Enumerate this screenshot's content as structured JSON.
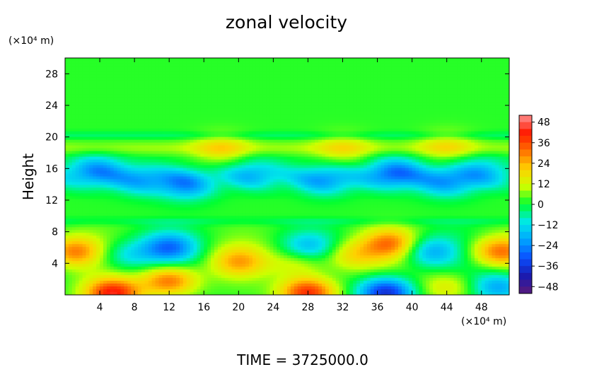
{
  "chart_data": {
    "type": "heatmap",
    "title": "zonal velocity",
    "ylabel": "Height",
    "xunit": "(×10⁴ m)",
    "yunit": "(×10⁴ m)",
    "footer": "TIME = 3725000.0",
    "x_ticks": [
      "4",
      "8",
      "12",
      "16",
      "20",
      "24",
      "28",
      "32",
      "36",
      "40",
      "44",
      "48"
    ],
    "y_ticks": [
      "4",
      "8",
      "12",
      "16",
      "20",
      "24",
      "28"
    ],
    "x_tick_values": [
      4,
      8,
      12,
      16,
      20,
      24,
      28,
      32,
      36,
      40,
      44,
      48
    ],
    "y_tick_values": [
      4,
      8,
      12,
      16,
      20,
      24,
      28
    ],
    "xlim": [
      0,
      51.2
    ],
    "ylim": [
      0,
      30
    ],
    "colorbar": {
      "labels": [
        "48",
        "36",
        "24",
        "12",
        "0",
        "−12",
        "−24",
        "−36",
        "−48"
      ],
      "values": [
        48,
        36,
        24,
        12,
        0,
        -12,
        -24,
        -36,
        -48
      ],
      "range": [
        -52,
        52
      ],
      "colors": [
        "#5a1a7a",
        "#1a1ab0",
        "#0a50ff",
        "#00a5ff",
        "#00e8e8",
        "#00ff30",
        "#ccff00",
        "#ffd000",
        "#ff7000",
        "#ff1a00",
        "#ff9090"
      ]
    },
    "background_value": 2,
    "features": [
      {
        "x": 3.5,
        "y": 15.8,
        "value": -22
      },
      {
        "x": 9,
        "y": 14.5,
        "value": -16
      },
      {
        "x": 14,
        "y": 13.8,
        "value": -20
      },
      {
        "x": 22,
        "y": 15.5,
        "value": -14
      },
      {
        "x": 30,
        "y": 14.5,
        "value": -18
      },
      {
        "x": 38,
        "y": 15.5,
        "value": -26
      },
      {
        "x": 44,
        "y": 14.2,
        "value": -18
      },
      {
        "x": 48,
        "y": 15.8,
        "value": -14
      },
      {
        "x": 18,
        "y": 18.5,
        "value": 14
      },
      {
        "x": 32,
        "y": 18.5,
        "value": 12
      },
      {
        "x": 44,
        "y": 18.8,
        "value": 12
      },
      {
        "x": 1,
        "y": 5.5,
        "value": 26
      },
      {
        "x": 12,
        "y": 6,
        "value": -26
      },
      {
        "x": 12,
        "y": 1.8,
        "value": 30
      },
      {
        "x": 5.5,
        "y": 0.2,
        "value": 40
      },
      {
        "x": 20,
        "y": 4.2,
        "value": 20
      },
      {
        "x": 28,
        "y": 0.3,
        "value": 38
      },
      {
        "x": 27,
        "y": 4.2,
        "value": 14
      },
      {
        "x": 28,
        "y": 6,
        "value": -18
      },
      {
        "x": 33,
        "y": 5,
        "value": 16
      },
      {
        "x": 37,
        "y": 0.3,
        "value": -40
      },
      {
        "x": 37.5,
        "y": 6.5,
        "value": 26
      },
      {
        "x": 42,
        "y": 5.5,
        "value": -20
      },
      {
        "x": 50,
        "y": 5.5,
        "value": 28
      },
      {
        "x": 50,
        "y": 1,
        "value": -22
      },
      {
        "x": 7,
        "y": 5,
        "value": -14
      },
      {
        "x": 44,
        "y": 1,
        "value": 14
      }
    ]
  }
}
